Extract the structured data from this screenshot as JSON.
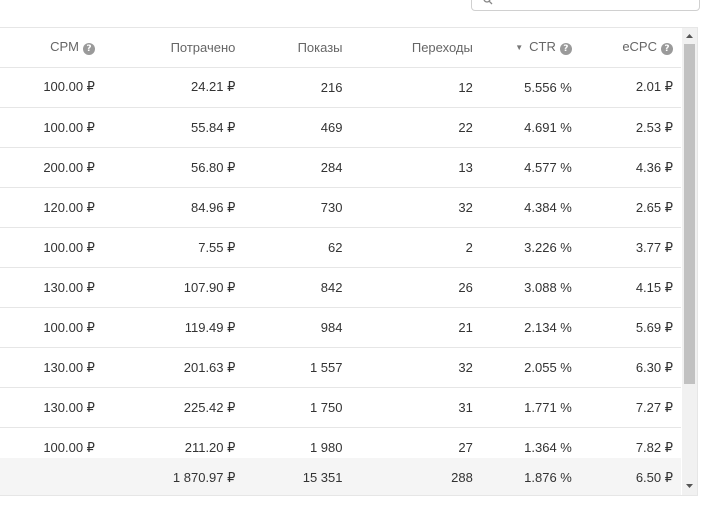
{
  "columns": [
    {
      "label": "CPM",
      "help": "?"
    },
    {
      "label": "Потрачено"
    },
    {
      "label": "Показы"
    },
    {
      "label": "Переходы"
    },
    {
      "label": "CTR",
      "help": "?",
      "sort": "desc"
    },
    {
      "label": "eCPC",
      "help": "?"
    }
  ],
  "rows": [
    [
      "100.00 ₽",
      "24.21 ₽",
      "216",
      "12",
      "5.556 %",
      "2.01 ₽"
    ],
    [
      "100.00 ₽",
      "55.84 ₽",
      "469",
      "22",
      "4.691 %",
      "2.53 ₽"
    ],
    [
      "200.00 ₽",
      "56.80 ₽",
      "284",
      "13",
      "4.577 %",
      "4.36 ₽"
    ],
    [
      "120.00 ₽",
      "84.96 ₽",
      "730",
      "32",
      "4.384 %",
      "2.65 ₽"
    ],
    [
      "100.00 ₽",
      "7.55 ₽",
      "62",
      "2",
      "3.226 %",
      "3.77 ₽"
    ],
    [
      "130.00 ₽",
      "107.90 ₽",
      "842",
      "26",
      "3.088 %",
      "4.15 ₽"
    ],
    [
      "100.00 ₽",
      "119.49 ₽",
      "984",
      "21",
      "2.134 %",
      "5.69 ₽"
    ],
    [
      "130.00 ₽",
      "201.63 ₽",
      "1 557",
      "32",
      "2.055 %",
      "6.30 ₽"
    ],
    [
      "130.00 ₽",
      "225.42 ₽",
      "1 750",
      "31",
      "1.771 %",
      "7.27 ₽"
    ],
    [
      "100.00 ₽",
      "211.20 ₽",
      "1 980",
      "27",
      "1.364 %",
      "7.82 ₽"
    ]
  ],
  "totals": [
    "",
    "1 870.97 ₽",
    "15 351",
    "288",
    "1.876 %",
    "6.50 ₽"
  ],
  "icons": {
    "search": "search-icon",
    "help": "help-icon",
    "sort": "sort-desc-icon",
    "scroll_up": "scroll-up-icon",
    "scroll_down": "scroll-down-icon"
  }
}
